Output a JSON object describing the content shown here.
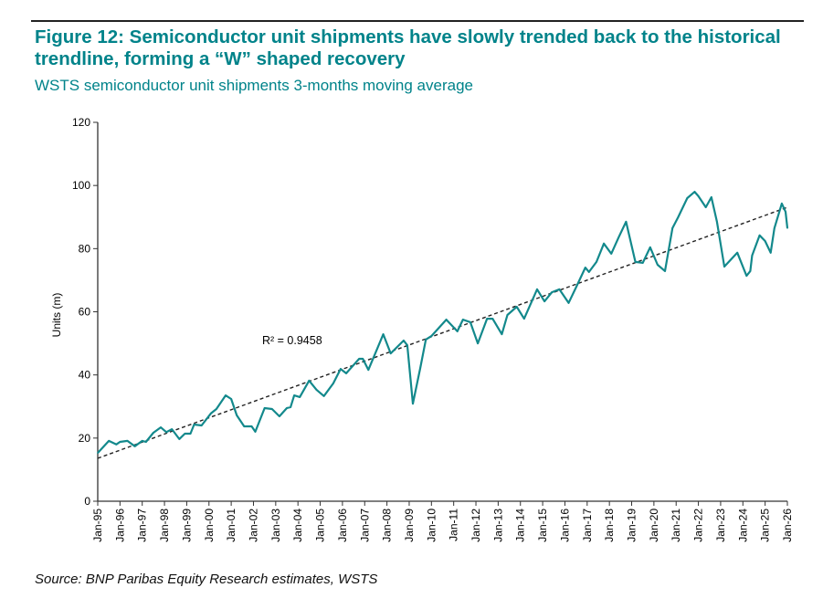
{
  "header": {
    "title": "Figure 12: Semiconductor unit shipments have slowly trended back to the historical trendline, forming a “W” shaped recovery",
    "subtitle": "WSTS semiconductor unit shipments 3-months moving average"
  },
  "footer": {
    "source": "Source: BNP Paribas Equity Research estimates, WSTS"
  },
  "colors": {
    "series": "#13898c",
    "trendline": "#222222",
    "title": "#00838a"
  },
  "chart_data": {
    "type": "line",
    "title": "",
    "xlabel": "",
    "ylabel": "Units (m)",
    "ylim": [
      0,
      120
    ],
    "yticks": [
      0,
      20,
      40,
      60,
      80,
      100,
      120
    ],
    "xlim": [
      "1995-01",
      "2026-01"
    ],
    "xtick_labels": [
      "Jan-95",
      "Jan-96",
      "Jan-97",
      "Jan-98",
      "Jan-99",
      "Jan-00",
      "Jan-01",
      "Jan-02",
      "Jan-03",
      "Jan-04",
      "Jan-05",
      "Jan-06",
      "Jan-07",
      "Jan-08",
      "Jan-09",
      "Jan-10",
      "Jan-11",
      "Jan-12",
      "Jan-13",
      "Jan-14",
      "Jan-15",
      "Jan-16",
      "Jan-17",
      "Jan-18",
      "Jan-19",
      "Jan-20",
      "Jan-21",
      "Jan-22",
      "Jan-23",
      "Jan-24",
      "Jan-25",
      "Jan-26"
    ],
    "grid": false,
    "legend": "none",
    "series": [
      {
        "points": [
          [
            "1995-01",
            15.3
          ],
          [
            "1995-07",
            19.1
          ],
          [
            "1995-11",
            18.0
          ],
          [
            "1996-01",
            18.8
          ],
          [
            "1996-05",
            19.1
          ],
          [
            "1996-09",
            17.4
          ],
          [
            "1997-01",
            19.1
          ],
          [
            "1997-03",
            18.8
          ],
          [
            "1997-07",
            21.7
          ],
          [
            "1997-11",
            23.4
          ],
          [
            "1998-02",
            21.9
          ],
          [
            "1998-05",
            22.8
          ],
          [
            "1998-09",
            19.7
          ],
          [
            "1998-12",
            21.4
          ],
          [
            "1999-03",
            21.4
          ],
          [
            "1999-05",
            24.3
          ],
          [
            "1999-09",
            24.0
          ],
          [
            "2000-02",
            27.8
          ],
          [
            "2000-05",
            29.2
          ],
          [
            "2000-10",
            33.5
          ],
          [
            "2001-01",
            32.4
          ],
          [
            "2001-04",
            27.2
          ],
          [
            "2001-08",
            23.7
          ],
          [
            "2001-12",
            23.7
          ],
          [
            "2002-02",
            22.0
          ],
          [
            "2002-07",
            29.5
          ],
          [
            "2002-11",
            29.2
          ],
          [
            "2003-03",
            26.9
          ],
          [
            "2003-07",
            29.5
          ],
          [
            "2003-09",
            29.8
          ],
          [
            "2003-11",
            33.5
          ],
          [
            "2004-02",
            33.0
          ],
          [
            "2004-07",
            38.2
          ],
          [
            "2004-11",
            35.3
          ],
          [
            "2005-03",
            33.3
          ],
          [
            "2005-08",
            37.3
          ],
          [
            "2005-12",
            41.9
          ],
          [
            "2006-03",
            40.5
          ],
          [
            "2006-10",
            45.1
          ],
          [
            "2006-12",
            45.1
          ],
          [
            "2007-03",
            41.6
          ],
          [
            "2007-11",
            52.9
          ],
          [
            "2008-03",
            46.8
          ],
          [
            "2008-10",
            50.9
          ],
          [
            "2008-12",
            49.4
          ],
          [
            "2009-03",
            30.9
          ],
          [
            "2009-07",
            42.2
          ],
          [
            "2009-10",
            51.2
          ],
          [
            "2010-01",
            52.3
          ],
          [
            "2010-09",
            57.5
          ],
          [
            "2011-03",
            53.8
          ],
          [
            "2011-06",
            57.5
          ],
          [
            "2011-10",
            56.7
          ],
          [
            "2012-02",
            50.0
          ],
          [
            "2012-07",
            57.8
          ],
          [
            "2012-10",
            57.8
          ],
          [
            "2013-03",
            52.9
          ],
          [
            "2013-06",
            59.0
          ],
          [
            "2013-11",
            61.6
          ],
          [
            "2014-03",
            57.8
          ],
          [
            "2014-10",
            67.1
          ],
          [
            "2015-02",
            63.3
          ],
          [
            "2015-06",
            66.2
          ],
          [
            "2015-10",
            67.1
          ],
          [
            "2016-03",
            62.8
          ],
          [
            "2016-07",
            67.7
          ],
          [
            "2016-12",
            74.0
          ],
          [
            "2017-02",
            72.6
          ],
          [
            "2017-06",
            75.8
          ],
          [
            "2017-10",
            81.6
          ],
          [
            "2018-02",
            78.4
          ],
          [
            "2018-06",
            83.6
          ],
          [
            "2018-10",
            88.5
          ],
          [
            "2019-03",
            75.8
          ],
          [
            "2019-07",
            75.5
          ],
          [
            "2019-11",
            80.4
          ],
          [
            "2020-03",
            74.9
          ],
          [
            "2020-07",
            72.9
          ],
          [
            "2020-11",
            86.5
          ],
          [
            "2021-02",
            89.9
          ],
          [
            "2021-07",
            96.0
          ],
          [
            "2021-11",
            98.0
          ],
          [
            "2022-01",
            96.6
          ],
          [
            "2022-05",
            93.1
          ],
          [
            "2022-08",
            96.3
          ],
          [
            "2022-11",
            88.5
          ],
          [
            "2023-03",
            74.3
          ],
          [
            "2023-10",
            78.7
          ],
          [
            "2024-03",
            71.4
          ],
          [
            "2024-05",
            72.9
          ],
          [
            "2024-06",
            77.8
          ],
          [
            "2024-10",
            84.2
          ],
          [
            "2025-01",
            82.4
          ],
          [
            "2025-04",
            78.7
          ],
          [
            "2025-06",
            86.5
          ],
          [
            "2025-10",
            94.3
          ],
          [
            "2025-12",
            91.7
          ],
          [
            "2026-01",
            86.5
          ]
        ]
      }
    ],
    "trendline": {
      "type": "linear",
      "start": [
        "1995-01",
        13.6
      ],
      "end": [
        "2026-01",
        93.1
      ],
      "style": "dashed",
      "annotation": "R² = 0.9458"
    }
  }
}
